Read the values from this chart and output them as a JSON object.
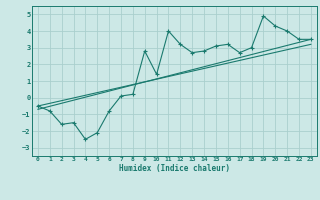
{
  "xlabel": "Humidex (Indice chaleur)",
  "ylabel": "",
  "bg_color": "#cce8e6",
  "grid_color": "#aacfcd",
  "line_color": "#1a7a6e",
  "xlim": [
    -0.5,
    23.5
  ],
  "ylim": [
    -3.5,
    5.5
  ],
  "xticks": [
    0,
    1,
    2,
    3,
    4,
    5,
    6,
    7,
    8,
    9,
    10,
    11,
    12,
    13,
    14,
    15,
    16,
    17,
    18,
    19,
    20,
    21,
    22,
    23
  ],
  "yticks": [
    -3,
    -2,
    -1,
    0,
    1,
    2,
    3,
    4,
    5
  ],
  "series1_x": [
    0,
    1,
    2,
    3,
    4,
    5,
    6,
    7,
    8,
    9,
    10,
    11,
    12,
    13,
    14,
    15,
    16,
    17,
    18,
    19,
    20,
    21,
    22,
    23
  ],
  "series1_y": [
    -0.5,
    -0.8,
    -1.6,
    -1.5,
    -2.5,
    -2.1,
    -0.8,
    0.1,
    0.2,
    2.8,
    1.4,
    4.0,
    3.2,
    2.7,
    2.8,
    3.1,
    3.2,
    2.7,
    3.0,
    4.9,
    4.3,
    4.0,
    3.5,
    3.5
  ],
  "line1_x": [
    0,
    23
  ],
  "line1_y": [
    -0.7,
    3.5
  ],
  "line2_x": [
    0,
    23
  ],
  "line2_y": [
    -0.5,
    3.2
  ]
}
